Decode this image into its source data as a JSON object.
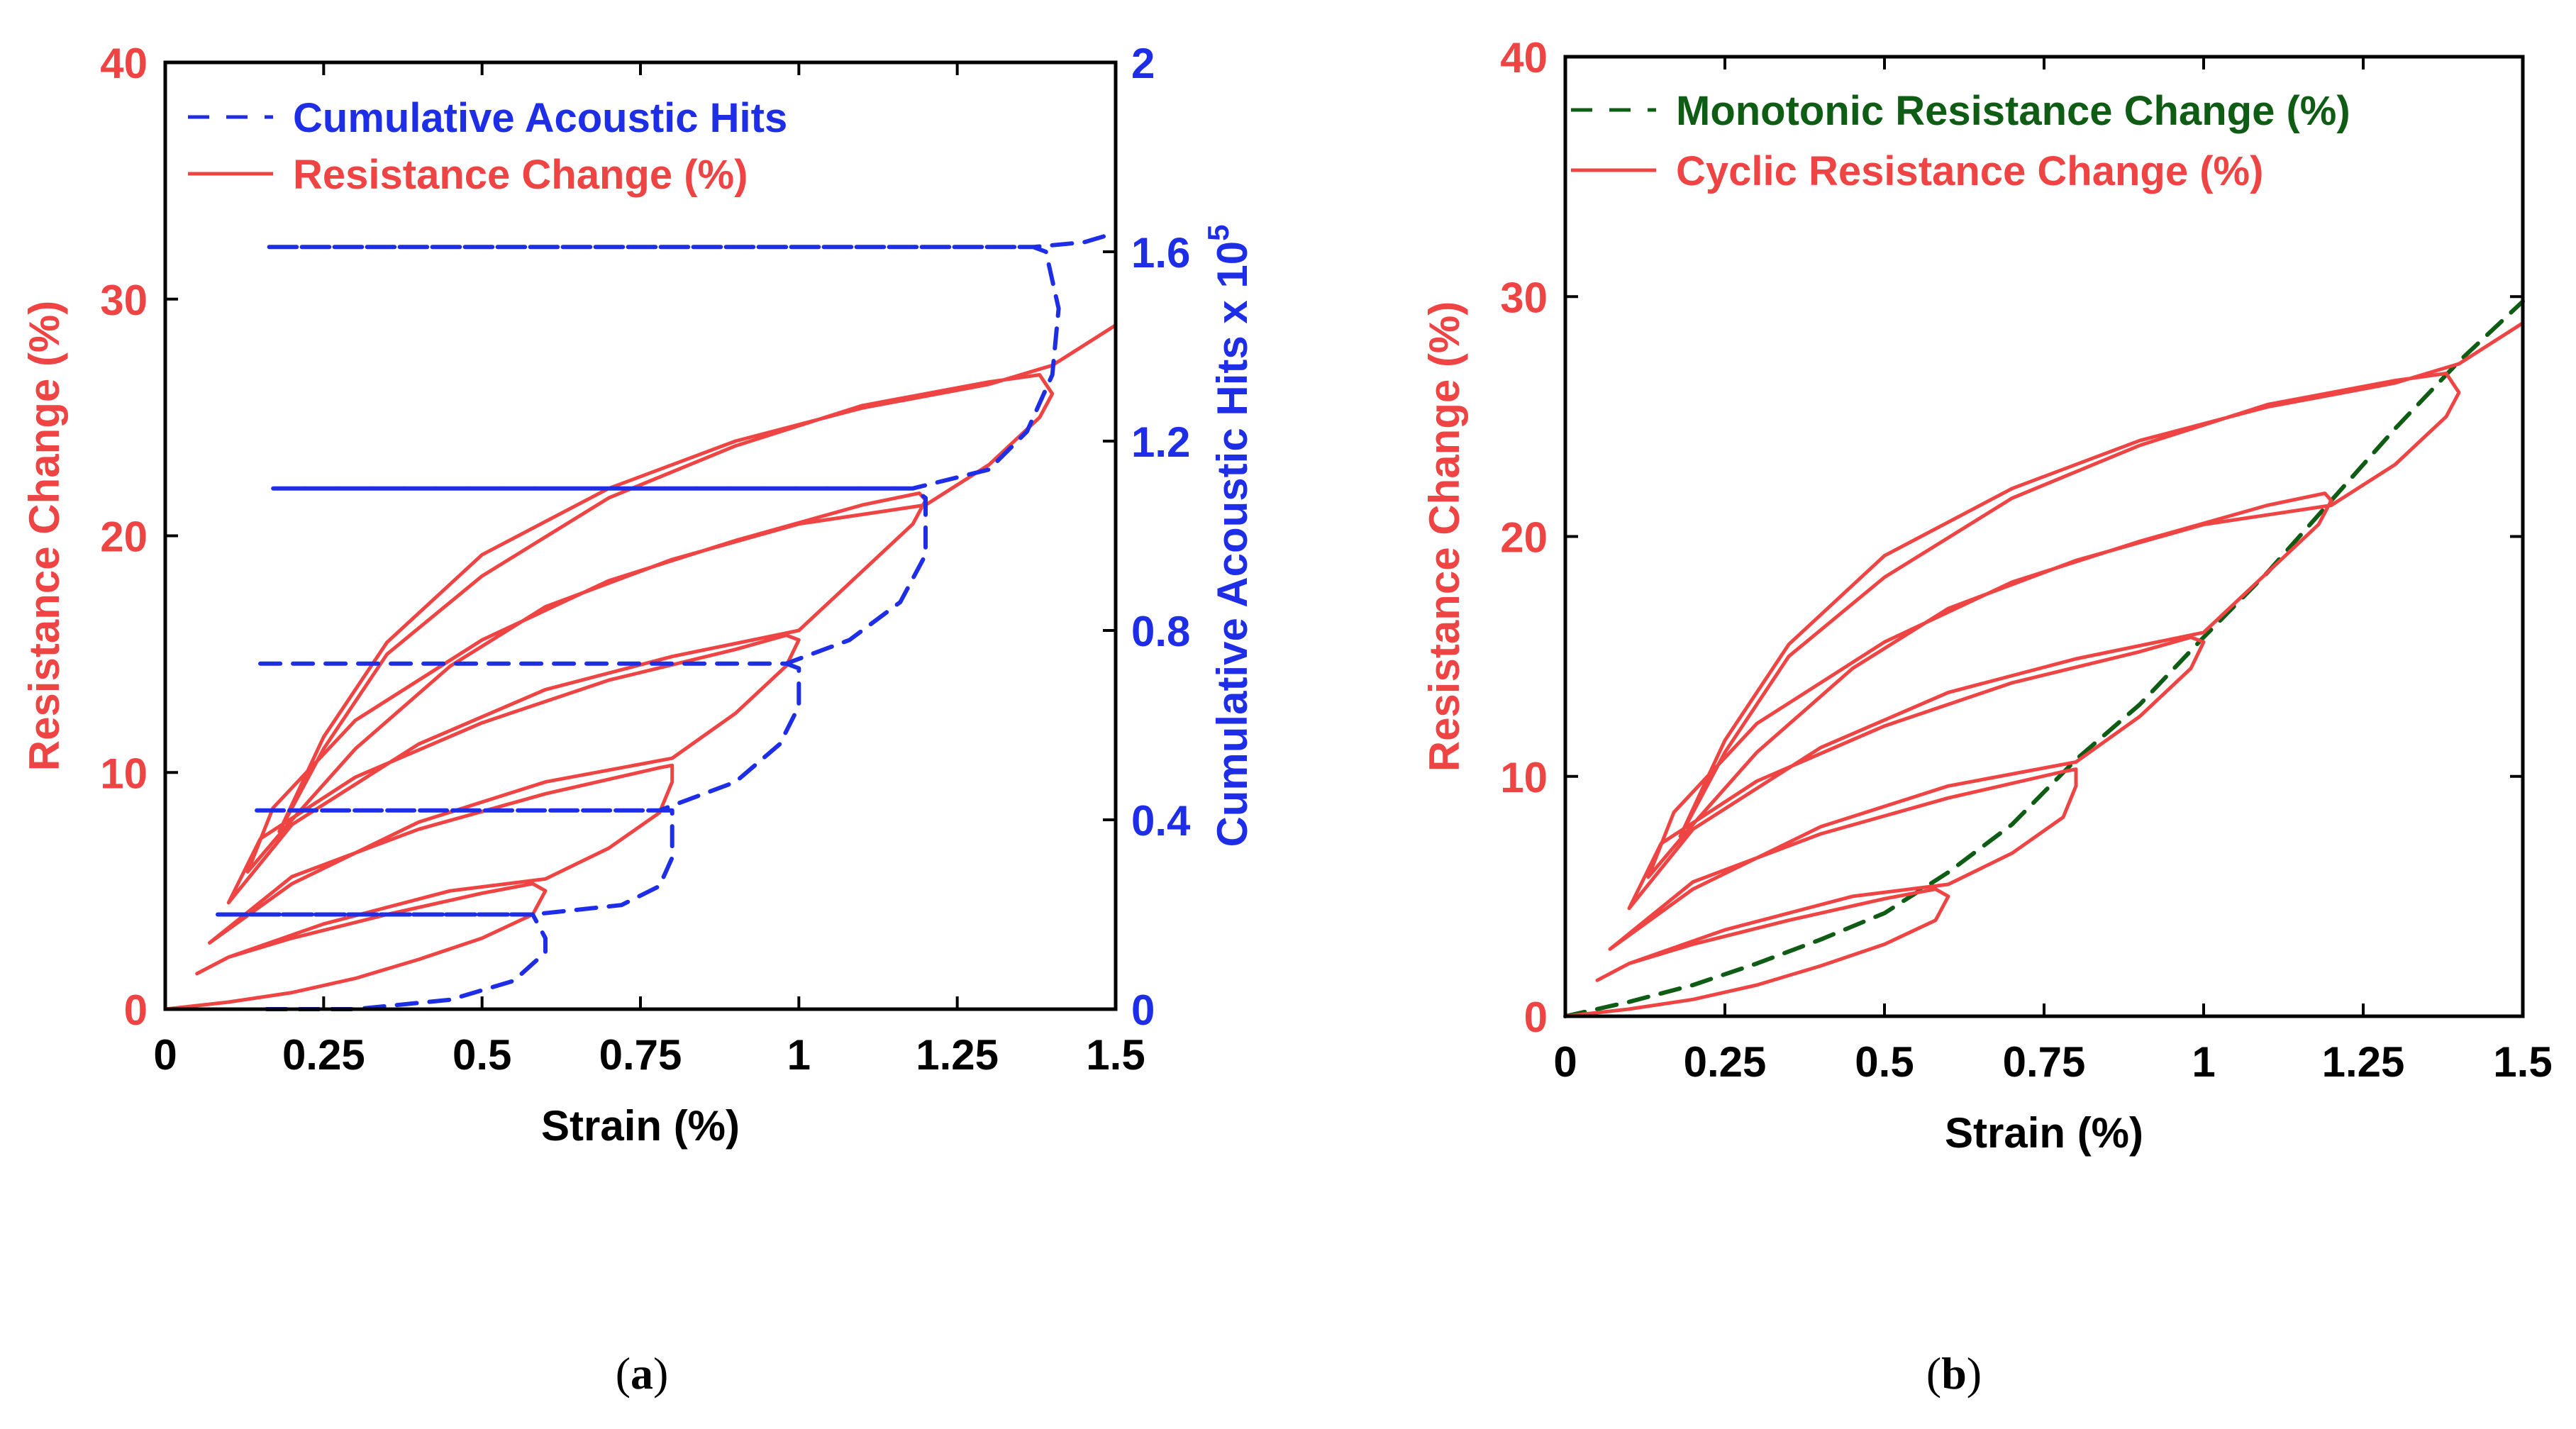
{
  "colors": {
    "resistance": "#ef4444",
    "acoustic": "#1e2ee6",
    "monotonic": "#0f5c14",
    "axis": "#000000"
  },
  "chart_data": [
    {
      "type": "line",
      "panel_label": "(a)",
      "panel_letter": "a",
      "xlabel": "Strain (%)",
      "ylabel": "Resistance Change (%)",
      "y2label": "Cumulative Acoustic Hits x 10",
      "y2label_exp": "5",
      "xlim": [
        0,
        1.5
      ],
      "ylim": [
        0,
        40
      ],
      "y2lim": [
        0,
        2
      ],
      "x_ticks": [
        0,
        0.25,
        0.5,
        0.75,
        1,
        1.25,
        1.5
      ],
      "x_tick_labels": [
        "0",
        "0.25",
        "0.5",
        "0.75",
        "1",
        "1.25",
        "1.5"
      ],
      "y_ticks": [
        0,
        10,
        20,
        30,
        40
      ],
      "y_tick_labels": [
        "0",
        "10",
        "20",
        "30",
        "40"
      ],
      "y2_ticks": [
        0,
        0.4,
        0.8,
        1.2,
        1.6,
        2
      ],
      "y2_tick_labels": [
        "0",
        "0.4",
        "0.8",
        "1.2",
        "1.6",
        "2"
      ],
      "legend": [
        {
          "label": "Cumulative Acoustic Hits",
          "style": "dashed",
          "color": "#1e2ee6"
        },
        {
          "label": "Resistance Change (%)",
          "style": "solid",
          "color": "#ef4444"
        }
      ],
      "series": [
        {
          "name": "Resistance Change (%)",
          "axis": "left",
          "style": "solid",
          "color": "#ef4444",
          "points": [
            [
              0,
              0
            ],
            [
              0.1,
              0.3
            ],
            [
              0.2,
              0.7
            ],
            [
              0.3,
              1.3
            ],
            [
              0.4,
              2.1
            ],
            [
              0.5,
              3.0
            ],
            [
              0.58,
              4.0
            ],
            [
              0.6,
              5.0
            ],
            [
              0.58,
              5.3
            ],
            [
              0.5,
              4.9
            ],
            [
              0.35,
              4.0
            ],
            [
              0.2,
              3.0
            ],
            [
              0.1,
              2.2
            ],
            [
              0.05,
              1.5
            ],
            [
              0.1,
              2.2
            ],
            [
              0.25,
              3.6
            ],
            [
              0.45,
              5.0
            ],
            [
              0.6,
              5.5
            ],
            [
              0.7,
              6.8
            ],
            [
              0.78,
              8.3
            ],
            [
              0.8,
              9.6
            ],
            [
              0.8,
              10.3
            ],
            [
              0.78,
              10.2
            ],
            [
              0.6,
              9.1
            ],
            [
              0.4,
              7.6
            ],
            [
              0.2,
              5.6
            ],
            [
              0.07,
              2.8
            ],
            [
              0.2,
              5.3
            ],
            [
              0.4,
              7.9
            ],
            [
              0.6,
              9.6
            ],
            [
              0.8,
              10.6
            ],
            [
              0.9,
              12.5
            ],
            [
              0.98,
              14.5
            ],
            [
              1.0,
              15.6
            ],
            [
              0.98,
              15.8
            ],
            [
              0.9,
              15.2
            ],
            [
              0.7,
              13.9
            ],
            [
              0.5,
              12.1
            ],
            [
              0.3,
              9.8
            ],
            [
              0.15,
              7.2
            ],
            [
              0.1,
              4.5
            ],
            [
              0.2,
              7.8
            ],
            [
              0.4,
              11.2
            ],
            [
              0.6,
              13.5
            ],
            [
              0.8,
              14.9
            ],
            [
              1.0,
              16.0
            ],
            [
              1.1,
              18.5
            ],
            [
              1.18,
              20.5
            ],
            [
              1.2,
              21.5
            ],
            [
              1.19,
              21.8
            ],
            [
              1.1,
              21.3
            ],
            [
              0.9,
              19.8
            ],
            [
              0.7,
              18.1
            ],
            [
              0.5,
              15.6
            ],
            [
              0.3,
              12.2
            ],
            [
              0.17,
              8.5
            ],
            [
              0.13,
              5.8
            ],
            [
              0.2,
              8.0
            ],
            [
              0.3,
              11.0
            ],
            [
              0.45,
              14.5
            ],
            [
              0.6,
              17.0
            ],
            [
              0.8,
              19.0
            ],
            [
              1.0,
              20.5
            ],
            [
              1.2,
              21.3
            ],
            [
              1.3,
              23.0
            ],
            [
              1.38,
              25.0
            ],
            [
              1.4,
              26.0
            ],
            [
              1.38,
              26.8
            ],
            [
              1.3,
              26.5
            ],
            [
              1.1,
              25.5
            ],
            [
              0.9,
              23.8
            ],
            [
              0.7,
              21.6
            ],
            [
              0.5,
              18.3
            ],
            [
              0.35,
              15.0
            ],
            [
              0.25,
              11.0
            ],
            [
              0.18,
              7.5
            ],
            [
              0.25,
              11.5
            ],
            [
              0.35,
              15.5
            ],
            [
              0.5,
              19.2
            ],
            [
              0.7,
              22.0
            ],
            [
              0.9,
              24.0
            ],
            [
              1.1,
              25.4
            ],
            [
              1.3,
              26.4
            ],
            [
              1.4,
              27.2
            ],
            [
              1.5,
              28.9
            ]
          ]
        },
        {
          "name": "Cumulative Acoustic Hits",
          "axis": "right",
          "style": "dashed",
          "color": "#1e2ee6",
          "points": [
            [
              0.16,
              0.0
            ],
            [
              0.3,
              0.0
            ],
            [
              0.45,
              0.02
            ],
            [
              0.55,
              0.06
            ],
            [
              0.6,
              0.12
            ],
            [
              0.6,
              0.15
            ],
            [
              0.58,
              0.2
            ],
            [
              0.08,
              0.2
            ],
            [
              0.58,
              0.2
            ],
            [
              0.72,
              0.22
            ],
            [
              0.78,
              0.26
            ],
            [
              0.8,
              0.32
            ],
            [
              0.8,
              0.42
            ],
            [
              0.78,
              0.42
            ],
            [
              0.14,
              0.42
            ],
            [
              0.78,
              0.42
            ],
            [
              0.9,
              0.48
            ],
            [
              0.97,
              0.56
            ],
            [
              1.0,
              0.64
            ],
            [
              1.0,
              0.72
            ],
            [
              0.98,
              0.73
            ],
            [
              0.14,
              0.73
            ],
            [
              0.98,
              0.73
            ],
            [
              1.08,
              0.78
            ],
            [
              1.16,
              0.86
            ],
            [
              1.2,
              0.96
            ],
            [
              1.2,
              1.08
            ],
            [
              1.18,
              1.1
            ],
            [
              0.17,
              1.1
            ],
            [
              1.18,
              1.1
            ],
            [
              1.3,
              1.14
            ],
            [
              1.36,
              1.22
            ],
            [
              1.4,
              1.34
            ],
            [
              1.41,
              1.48
            ],
            [
              1.39,
              1.6
            ],
            [
              1.37,
              1.61
            ],
            [
              0.16,
              1.61
            ],
            [
              1.37,
              1.61
            ],
            [
              1.45,
              1.62
            ],
            [
              1.5,
              1.64
            ]
          ]
        }
      ]
    },
    {
      "type": "line",
      "panel_label": "(b)",
      "panel_letter": "b",
      "xlabel": "Strain (%)",
      "ylabel": "Resistance Change (%)",
      "xlim": [
        0,
        1.5
      ],
      "ylim": [
        0,
        40
      ],
      "x_ticks": [
        0,
        0.25,
        0.5,
        0.75,
        1,
        1.25,
        1.5
      ],
      "x_tick_labels": [
        "0",
        "0.25",
        "0.5",
        "0.75",
        "1",
        "1.25",
        "1.5"
      ],
      "y_ticks": [
        0,
        10,
        20,
        30,
        40
      ],
      "y_tick_labels": [
        "0",
        "10",
        "20",
        "30",
        "40"
      ],
      "legend": [
        {
          "label": "Monotonic Resistance Change (%)",
          "style": "dashed",
          "color": "#0f5c14"
        },
        {
          "label": "Cyclic Resistance Change (%)",
          "style": "solid",
          "color": "#ef4444"
        }
      ],
      "series": [
        {
          "name": "Monotonic Resistance Change (%)",
          "axis": "left",
          "style": "dashed",
          "color": "#0f5c14",
          "points": [
            [
              0,
              0
            ],
            [
              0.1,
              0.6
            ],
            [
              0.2,
              1.3
            ],
            [
              0.3,
              2.2
            ],
            [
              0.4,
              3.2
            ],
            [
              0.5,
              4.3
            ],
            [
              0.6,
              6.0
            ],
            [
              0.7,
              8.0
            ],
            [
              0.8,
              10.7
            ],
            [
              0.9,
              13.0
            ],
            [
              1.0,
              15.8
            ],
            [
              1.1,
              18.5
            ],
            [
              1.2,
              21.5
            ],
            [
              1.3,
              24.5
            ],
            [
              1.4,
              27.3
            ],
            [
              1.5,
              29.8
            ]
          ]
        },
        {
          "name": "Cyclic Resistance Change (%)",
          "axis": "left",
          "style": "solid",
          "color": "#ef4444",
          "points": [
            [
              0,
              0
            ],
            [
              0.1,
              0.3
            ],
            [
              0.2,
              0.7
            ],
            [
              0.3,
              1.3
            ],
            [
              0.4,
              2.1
            ],
            [
              0.5,
              3.0
            ],
            [
              0.58,
              4.0
            ],
            [
              0.6,
              5.0
            ],
            [
              0.58,
              5.3
            ],
            [
              0.5,
              4.9
            ],
            [
              0.35,
              4.0
            ],
            [
              0.2,
              3.0
            ],
            [
              0.1,
              2.2
            ],
            [
              0.05,
              1.5
            ],
            [
              0.1,
              2.2
            ],
            [
              0.25,
              3.6
            ],
            [
              0.45,
              5.0
            ],
            [
              0.6,
              5.5
            ],
            [
              0.7,
              6.8
            ],
            [
              0.78,
              8.3
            ],
            [
              0.8,
              9.6
            ],
            [
              0.8,
              10.3
            ],
            [
              0.78,
              10.2
            ],
            [
              0.6,
              9.1
            ],
            [
              0.4,
              7.6
            ],
            [
              0.2,
              5.6
            ],
            [
              0.07,
              2.8
            ],
            [
              0.2,
              5.3
            ],
            [
              0.4,
              7.9
            ],
            [
              0.6,
              9.6
            ],
            [
              0.8,
              10.6
            ],
            [
              0.9,
              12.5
            ],
            [
              0.98,
              14.5
            ],
            [
              1.0,
              15.6
            ],
            [
              0.98,
              15.8
            ],
            [
              0.9,
              15.2
            ],
            [
              0.7,
              13.9
            ],
            [
              0.5,
              12.1
            ],
            [
              0.3,
              9.8
            ],
            [
              0.15,
              7.2
            ],
            [
              0.1,
              4.5
            ],
            [
              0.2,
              7.8
            ],
            [
              0.4,
              11.2
            ],
            [
              0.6,
              13.5
            ],
            [
              0.8,
              14.9
            ],
            [
              1.0,
              16.0
            ],
            [
              1.1,
              18.5
            ],
            [
              1.18,
              20.5
            ],
            [
              1.2,
              21.5
            ],
            [
              1.19,
              21.8
            ],
            [
              1.1,
              21.3
            ],
            [
              0.9,
              19.8
            ],
            [
              0.7,
              18.1
            ],
            [
              0.5,
              15.6
            ],
            [
              0.3,
              12.2
            ],
            [
              0.17,
              8.5
            ],
            [
              0.13,
              5.8
            ],
            [
              0.2,
              8.0
            ],
            [
              0.3,
              11.0
            ],
            [
              0.45,
              14.5
            ],
            [
              0.6,
              17.0
            ],
            [
              0.8,
              19.0
            ],
            [
              1.0,
              20.5
            ],
            [
              1.2,
              21.3
            ],
            [
              1.3,
              23.0
            ],
            [
              1.38,
              25.0
            ],
            [
              1.4,
              26.0
            ],
            [
              1.38,
              26.8
            ],
            [
              1.3,
              26.5
            ],
            [
              1.1,
              25.5
            ],
            [
              0.9,
              23.8
            ],
            [
              0.7,
              21.6
            ],
            [
              0.5,
              18.3
            ],
            [
              0.35,
              15.0
            ],
            [
              0.25,
              11.0
            ],
            [
              0.18,
              7.5
            ],
            [
              0.25,
              11.5
            ],
            [
              0.35,
              15.5
            ],
            [
              0.5,
              19.2
            ],
            [
              0.7,
              22.0
            ],
            [
              0.9,
              24.0
            ],
            [
              1.1,
              25.4
            ],
            [
              1.3,
              26.4
            ],
            [
              1.4,
              27.2
            ],
            [
              1.5,
              28.9
            ]
          ]
        }
      ]
    }
  ]
}
